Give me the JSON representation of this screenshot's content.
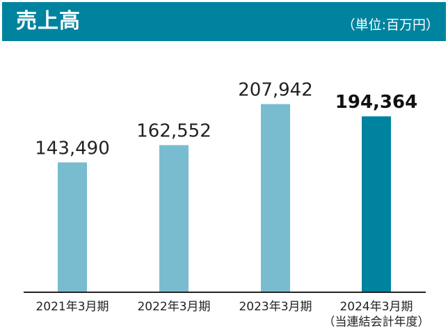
{
  "header": {
    "title": "売上高",
    "unit": "（単位:百万円）"
  },
  "colors": {
    "header_bg": "#00839f",
    "bar_past": "#79bcd0",
    "bar_current": "#00839f",
    "axis": "#222222"
  },
  "chart_data": {
    "type": "bar",
    "title": "売上高",
    "unit": "（単位:百万円）",
    "categories": [
      "2021年3月期",
      "2022年3月期",
      "2023年3月期",
      "2024年3月期"
    ],
    "category_sublabels": [
      "",
      "",
      "",
      "（当連結会計年度）"
    ],
    "values": [
      143490,
      162552,
      207942,
      194364
    ],
    "value_labels": [
      "143,490",
      "162,552",
      "207,942",
      "194,364"
    ],
    "highlight_index": 3,
    "ylim": [
      0,
      223000
    ],
    "grid": false,
    "legend": "none"
  }
}
